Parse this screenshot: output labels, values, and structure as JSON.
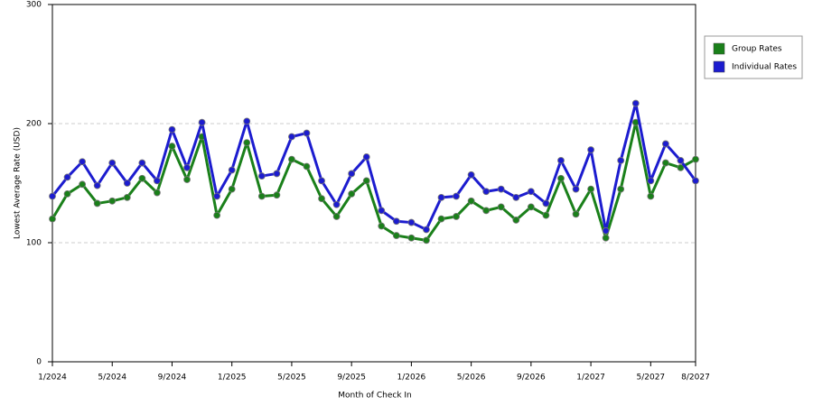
{
  "chart_data": {
    "type": "line",
    "x_label": "Month of Check In",
    "y_label": "Lowest Average Rate (USD)",
    "categories": [
      "1/2024",
      null,
      null,
      null,
      "5/2024",
      null,
      null,
      null,
      "9/2024",
      null,
      null,
      null,
      "1/2025",
      null,
      null,
      null,
      "5/2025",
      null,
      null,
      null,
      "9/2025",
      null,
      null,
      null,
      "1/2026",
      null,
      null,
      null,
      "5/2026",
      null,
      null,
      null,
      "9/2026",
      null,
      null,
      null,
      "1/2027",
      null,
      null,
      null,
      "5/2027",
      null,
      null,
      "8/2027"
    ],
    "series": [
      {
        "name": "Group Rates",
        "color": "#1a801a",
        "values": [
          120,
          141,
          149,
          133,
          135,
          138,
          154,
          142,
          181,
          153,
          189,
          123,
          145,
          184,
          139,
          140,
          170,
          164,
          137,
          122,
          141,
          152,
          114,
          106,
          104,
          102,
          120,
          122,
          135,
          127,
          130,
          119,
          130,
          123,
          154,
          124,
          145,
          104,
          145,
          201,
          139,
          167,
          163,
          170
        ]
      },
      {
        "name": "Individual Rates",
        "color": "#1c1ccf",
        "values": [
          139,
          155,
          168,
          148,
          167,
          150,
          167,
          152,
          195,
          163,
          201,
          139,
          161,
          202,
          156,
          158,
          189,
          192,
          152,
          132,
          158,
          172,
          127,
          118,
          117,
          111,
          138,
          139,
          157,
          143,
          145,
          138,
          143,
          133,
          169,
          145,
          178,
          110,
          169,
          217,
          152,
          183,
          169,
          152
        ]
      }
    ],
    "ylim": [
      0,
      300
    ],
    "yticks": [
      0,
      100,
      200,
      300
    ],
    "grid": true
  }
}
